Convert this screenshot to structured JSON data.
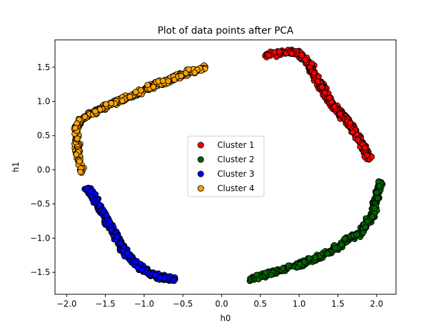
{
  "chart_data": {
    "type": "scatter",
    "title": "Plot of data points after PCA",
    "xlabel": "h0",
    "ylabel": "h1",
    "xlim": [
      -2.15,
      2.25
    ],
    "ylim": [
      -1.82,
      1.9
    ],
    "xticks": [
      -2.0,
      -1.5,
      -1.0,
      -0.5,
      0.0,
      0.5,
      1.0,
      1.5,
      2.0
    ],
    "yticks": [
      -1.5,
      -1.0,
      -0.5,
      0.0,
      0.5,
      1.0,
      1.5
    ],
    "grid": false,
    "legend_position": "center",
    "marker_edge_color": "#000000",
    "series": [
      {
        "name": "Cluster 1",
        "color": "#ff0000",
        "path": [
          [
            0.55,
            1.68
          ],
          [
            0.75,
            1.71
          ],
          [
            0.9,
            1.72
          ],
          [
            1.0,
            1.7
          ],
          [
            1.1,
            1.58
          ],
          [
            1.2,
            1.4
          ],
          [
            1.3,
            1.2
          ],
          [
            1.4,
            1.0
          ],
          [
            1.5,
            0.85
          ],
          [
            1.6,
            0.75
          ],
          [
            1.7,
            0.6
          ],
          [
            1.8,
            0.4
          ],
          [
            1.88,
            0.22
          ],
          [
            1.9,
            0.15
          ]
        ]
      },
      {
        "name": "Cluster 2",
        "color": "#006400",
        "path": [
          [
            0.32,
            -1.62
          ],
          [
            0.45,
            -1.58
          ],
          [
            0.6,
            -1.52
          ],
          [
            0.8,
            -1.45
          ],
          [
            1.0,
            -1.38
          ],
          [
            1.2,
            -1.3
          ],
          [
            1.4,
            -1.2
          ],
          [
            1.6,
            -1.05
          ],
          [
            1.8,
            -0.9
          ],
          [
            1.95,
            -0.65
          ],
          [
            2.0,
            -0.4
          ],
          [
            2.05,
            -0.17
          ]
        ]
      },
      {
        "name": "Cluster 3",
        "color": "#0000ff",
        "path": [
          [
            -1.75,
            -0.24
          ],
          [
            -1.65,
            -0.4
          ],
          [
            -1.55,
            -0.6
          ],
          [
            -1.45,
            -0.8
          ],
          [
            -1.35,
            -1.0
          ],
          [
            -1.25,
            -1.2
          ],
          [
            -1.15,
            -1.33
          ],
          [
            -1.05,
            -1.42
          ],
          [
            -0.95,
            -1.5
          ],
          [
            -0.85,
            -1.55
          ],
          [
            -0.75,
            -1.58
          ],
          [
            -0.6,
            -1.6
          ]
        ]
      },
      {
        "name": "Cluster 4",
        "color": "#ffa500",
        "path": [
          [
            -1.8,
            -0.05
          ],
          [
            -1.83,
            0.1
          ],
          [
            -1.86,
            0.35
          ],
          [
            -1.88,
            0.6
          ],
          [
            -1.8,
            0.75
          ],
          [
            -1.65,
            0.84
          ],
          [
            -1.5,
            0.92
          ],
          [
            -1.3,
            1.02
          ],
          [
            -1.1,
            1.12
          ],
          [
            -0.9,
            1.22
          ],
          [
            -0.7,
            1.3
          ],
          [
            -0.5,
            1.4
          ],
          [
            -0.3,
            1.47
          ],
          [
            -0.2,
            1.5
          ]
        ]
      }
    ]
  }
}
